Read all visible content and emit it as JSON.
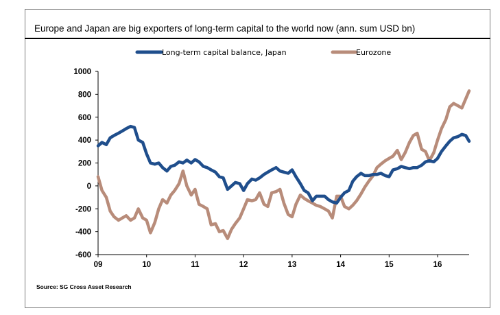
{
  "chart_data": {
    "type": "line",
    "title": "Europe and Japan are big exporters of long-term capital to the world now (ann. sum USD bn)",
    "source": "Source: SG Cross Asset Research",
    "xlabel": "",
    "ylabel": "",
    "xlim": [
      2009,
      2016.65
    ],
    "ylim": [
      -600,
      1000
    ],
    "y_ticks": [
      "1000",
      "800",
      "600",
      "400",
      "200",
      "0",
      "-200",
      "-400",
      "-600"
    ],
    "x_ticks": [
      "09",
      "10",
      "11",
      "12",
      "13",
      "14",
      "15",
      "16"
    ],
    "grid": false,
    "legend_position": "top",
    "series": [
      {
        "name": "Long-term capital balance, Japan",
        "color": "#1f4e8c",
        "x": [
          2009.0,
          2009.08,
          2009.17,
          2009.25,
          2009.33,
          2009.42,
          2009.5,
          2009.58,
          2009.67,
          2009.75,
          2009.83,
          2009.92,
          2010.0,
          2010.08,
          2010.17,
          2010.25,
          2010.33,
          2010.42,
          2010.5,
          2010.58,
          2010.67,
          2010.75,
          2010.83,
          2010.92,
          2011.0,
          2011.08,
          2011.17,
          2011.25,
          2011.33,
          2011.42,
          2011.5,
          2011.58,
          2011.67,
          2011.75,
          2011.83,
          2011.92,
          2012.0,
          2012.08,
          2012.17,
          2012.25,
          2012.33,
          2012.42,
          2012.5,
          2012.58,
          2012.67,
          2012.75,
          2012.83,
          2012.92,
          2013.0,
          2013.08,
          2013.17,
          2013.25,
          2013.33,
          2013.42,
          2013.5,
          2013.58,
          2013.67,
          2013.75,
          2013.83,
          2013.92,
          2014.0,
          2014.08,
          2014.17,
          2014.25,
          2014.33,
          2014.42,
          2014.5,
          2014.58,
          2014.67,
          2014.75,
          2014.83,
          2014.92,
          2015.0,
          2015.08,
          2015.17,
          2015.25,
          2015.33,
          2015.42,
          2015.5,
          2015.58,
          2015.67,
          2015.75,
          2015.83,
          2015.92,
          2016.0,
          2016.08,
          2016.17,
          2016.25,
          2016.33,
          2016.42,
          2016.5,
          2016.58,
          2016.65
        ],
        "values": [
          350,
          380,
          360,
          420,
          440,
          460,
          480,
          500,
          520,
          510,
          400,
          380,
          280,
          200,
          190,
          200,
          160,
          130,
          170,
          180,
          210,
          200,
          225,
          200,
          230,
          210,
          170,
          160,
          140,
          120,
          80,
          70,
          -30,
          0,
          30,
          20,
          -40,
          20,
          60,
          50,
          70,
          100,
          120,
          140,
          160,
          130,
          120,
          110,
          140,
          80,
          20,
          -40,
          -60,
          -130,
          -90,
          -90,
          -90,
          -120,
          -140,
          -150,
          -100,
          -60,
          -40,
          40,
          80,
          110,
          90,
          90,
          100,
          100,
          110,
          90,
          80,
          140,
          150,
          170,
          160,
          150,
          160,
          160,
          180,
          210,
          220,
          210,
          240,
          300,
          350,
          390,
          420,
          430,
          450,
          440,
          390
        ]
      },
      {
        "name": "Eurozone",
        "color": "#b88c7a",
        "x": [
          2009.0,
          2009.08,
          2009.17,
          2009.25,
          2009.33,
          2009.42,
          2009.5,
          2009.58,
          2009.67,
          2009.75,
          2009.83,
          2009.92,
          2010.0,
          2010.08,
          2010.17,
          2010.25,
          2010.33,
          2010.42,
          2010.5,
          2010.58,
          2010.67,
          2010.75,
          2010.83,
          2010.92,
          2011.0,
          2011.08,
          2011.17,
          2011.25,
          2011.33,
          2011.42,
          2011.5,
          2011.58,
          2011.67,
          2011.75,
          2011.83,
          2011.92,
          2012.0,
          2012.08,
          2012.17,
          2012.25,
          2012.33,
          2012.42,
          2012.5,
          2012.58,
          2012.67,
          2012.75,
          2012.83,
          2012.92,
          2013.0,
          2013.08,
          2013.17,
          2013.25,
          2013.33,
          2013.42,
          2013.5,
          2013.58,
          2013.67,
          2013.75,
          2013.83,
          2013.92,
          2014.0,
          2014.08,
          2014.17,
          2014.25,
          2014.33,
          2014.42,
          2014.5,
          2014.58,
          2014.67,
          2014.75,
          2014.83,
          2014.92,
          2015.0,
          2015.08,
          2015.17,
          2015.25,
          2015.33,
          2015.42,
          2015.5,
          2015.58,
          2015.67,
          2015.75,
          2015.83,
          2015.92,
          2016.0,
          2016.08,
          2016.17,
          2016.25,
          2016.33,
          2016.42,
          2016.5,
          2016.58,
          2016.65
        ],
        "values": [
          80,
          -40,
          -100,
          -220,
          -270,
          -300,
          -280,
          -260,
          -300,
          -280,
          -200,
          -280,
          -300,
          -410,
          -320,
          -200,
          -120,
          -150,
          -80,
          -40,
          20,
          130,
          0,
          -80,
          -30,
          -160,
          -180,
          -200,
          -340,
          -330,
          -400,
          -390,
          -460,
          -380,
          -330,
          -280,
          -200,
          -120,
          -130,
          -120,
          -60,
          -160,
          -180,
          -60,
          -50,
          -30,
          -150,
          -250,
          -270,
          -160,
          -80,
          -110,
          -130,
          -150,
          -170,
          -180,
          -200,
          -220,
          -280,
          -90,
          -90,
          -180,
          -200,
          -170,
          -130,
          -70,
          -10,
          40,
          90,
          160,
          190,
          220,
          240,
          260,
          310,
          230,
          290,
          380,
          440,
          460,
          320,
          300,
          220,
          290,
          400,
          500,
          580,
          690,
          720,
          700,
          680,
          760,
          830
        ]
      }
    ]
  }
}
